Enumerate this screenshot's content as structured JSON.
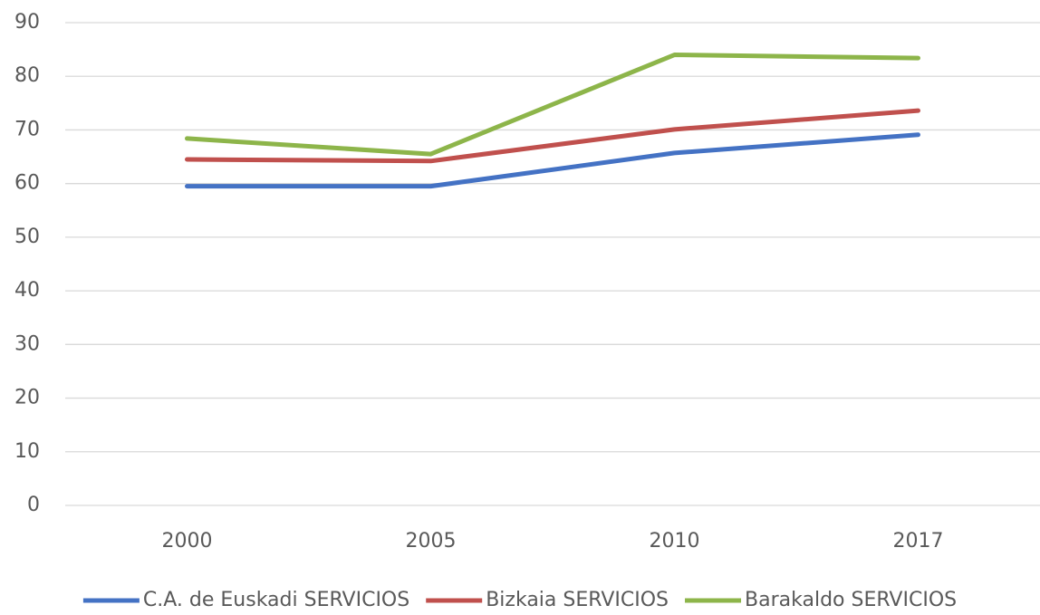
{
  "chart_data": {
    "type": "line",
    "categories": [
      "2000",
      "2005",
      "2010",
      "2017"
    ],
    "series": [
      {
        "name": "C.A. de Euskadi SERVICIOS",
        "color": "#4472c4",
        "values": [
          59.5,
          59.5,
          65.7,
          69.1
        ]
      },
      {
        "name": "Bizkaia SERVICIOS",
        "color": "#c0504d",
        "values": [
          64.5,
          64.2,
          70.1,
          73.6
        ]
      },
      {
        "name": "Barakaldo SERVICIOS",
        "color": "#8db54a",
        "values": [
          68.4,
          65.5,
          84.0,
          83.4
        ]
      }
    ],
    "ylim": [
      0,
      90
    ],
    "yticks": [
      0,
      10,
      20,
      30,
      40,
      50,
      60,
      70,
      80,
      90
    ],
    "grid": true,
    "legend": "bottom"
  }
}
